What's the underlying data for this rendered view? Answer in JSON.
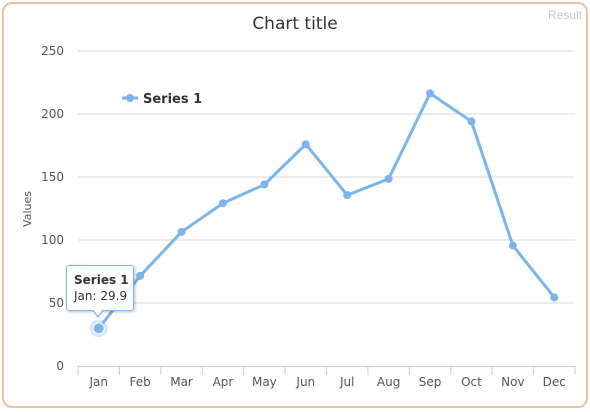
{
  "window": {
    "result_tag": "Result"
  },
  "colors": {
    "series": "#7cb5ec",
    "grid": "#d8d8d8",
    "frame": "#e3c6a6"
  },
  "tooltip": {
    "series_name": "Series 1",
    "line": "Jan: 29.9"
  },
  "chart_data": {
    "type": "line",
    "title": "Chart title",
    "xlabel": "",
    "ylabel": "Values",
    "categories": [
      "Jan",
      "Feb",
      "Mar",
      "Apr",
      "May",
      "Jun",
      "Jul",
      "Aug",
      "Sep",
      "Oct",
      "Nov",
      "Dec"
    ],
    "series": [
      {
        "name": "Series 1",
        "values": [
          29.9,
          71.5,
          106.4,
          129.2,
          144.0,
          176.0,
          135.6,
          148.5,
          216.4,
          194.1,
          95.6,
          54.4
        ]
      }
    ],
    "ylim": [
      0,
      250
    ],
    "yticks": [
      0,
      50,
      100,
      150,
      200,
      250
    ],
    "grid": true,
    "legend_position": "top-left, inside plot area",
    "highlighted_point": "Jan"
  }
}
